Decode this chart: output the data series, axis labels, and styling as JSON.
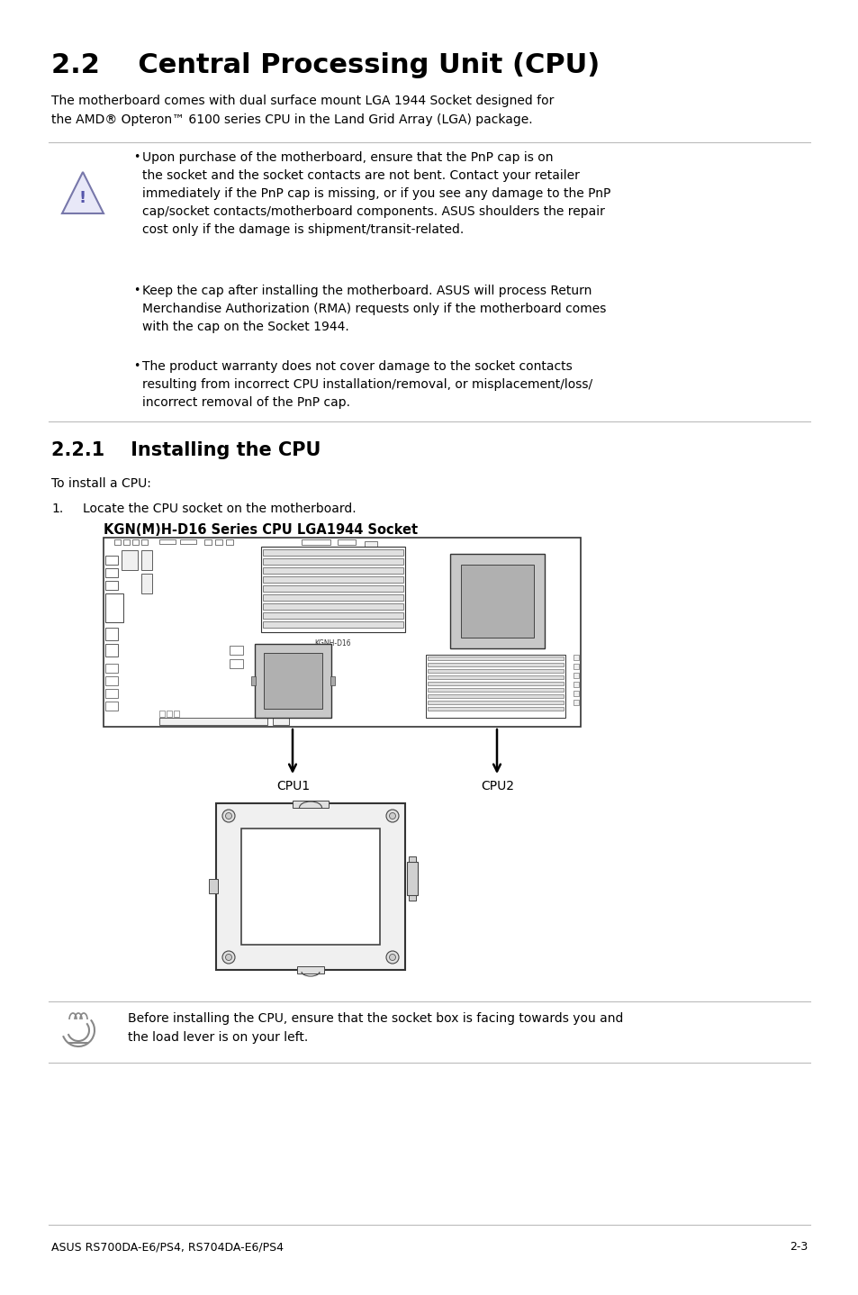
{
  "bg_color": "#ffffff",
  "title": "2.2    Central Processing Unit (CPU)",
  "title_fontsize": 22,
  "body_fontsize": 10.0,
  "small_fontsize": 9.0,
  "intro_text": "The motherboard comes with dual surface mount LGA 1944 Socket designed for\nthe AMD® Opteron™ 6100 series CPU in the Land Grid Array (LGA) package.",
  "warning_bullets": [
    "Upon purchase of the motherboard, ensure that the PnP cap is on\nthe socket and the socket contacts are not bent. Contact your retailer\nimmediately if the PnP cap is missing, or if you see any damage to the PnP\ncap/socket contacts/motherboard components. ASUS shoulders the repair\ncost only if the damage is shipment/transit-related.",
    "Keep the cap after installing the motherboard. ASUS will process Return\nMerchandise Authorization (RMA) requests only if the motherboard comes\nwith the cap on the Socket 1944.",
    "The product warranty does not cover damage to the socket contacts\nresulting from incorrect CPU installation/removal, or misplacement/loss/\nincorrect removal of the PnP cap."
  ],
  "section_title": "2.2.1    Installing the CPU",
  "section_fontsize": 15,
  "install_intro": "To install a CPU:",
  "step1_prefix": "1.",
  "step1_text": "Locate the CPU socket on the motherboard.",
  "diagram_label": "KGN(M)H-D16 Series CPU LGA1944 Socket",
  "cpu1_label": "CPU1",
  "cpu2_label": "CPU2",
  "note_text": "Before installing the CPU, ensure that the socket box is facing towards you and\nthe load lever is on your left.",
  "footer_left": "ASUS RS700DA-E6/PS4, RS704DA-E6/PS4",
  "footer_right": "2-3",
  "line_color": "#bbbbbb",
  "text_color": "#000000",
  "warn_tri_fill": "#e8e8f8",
  "warn_tri_edge": "#7777aa"
}
